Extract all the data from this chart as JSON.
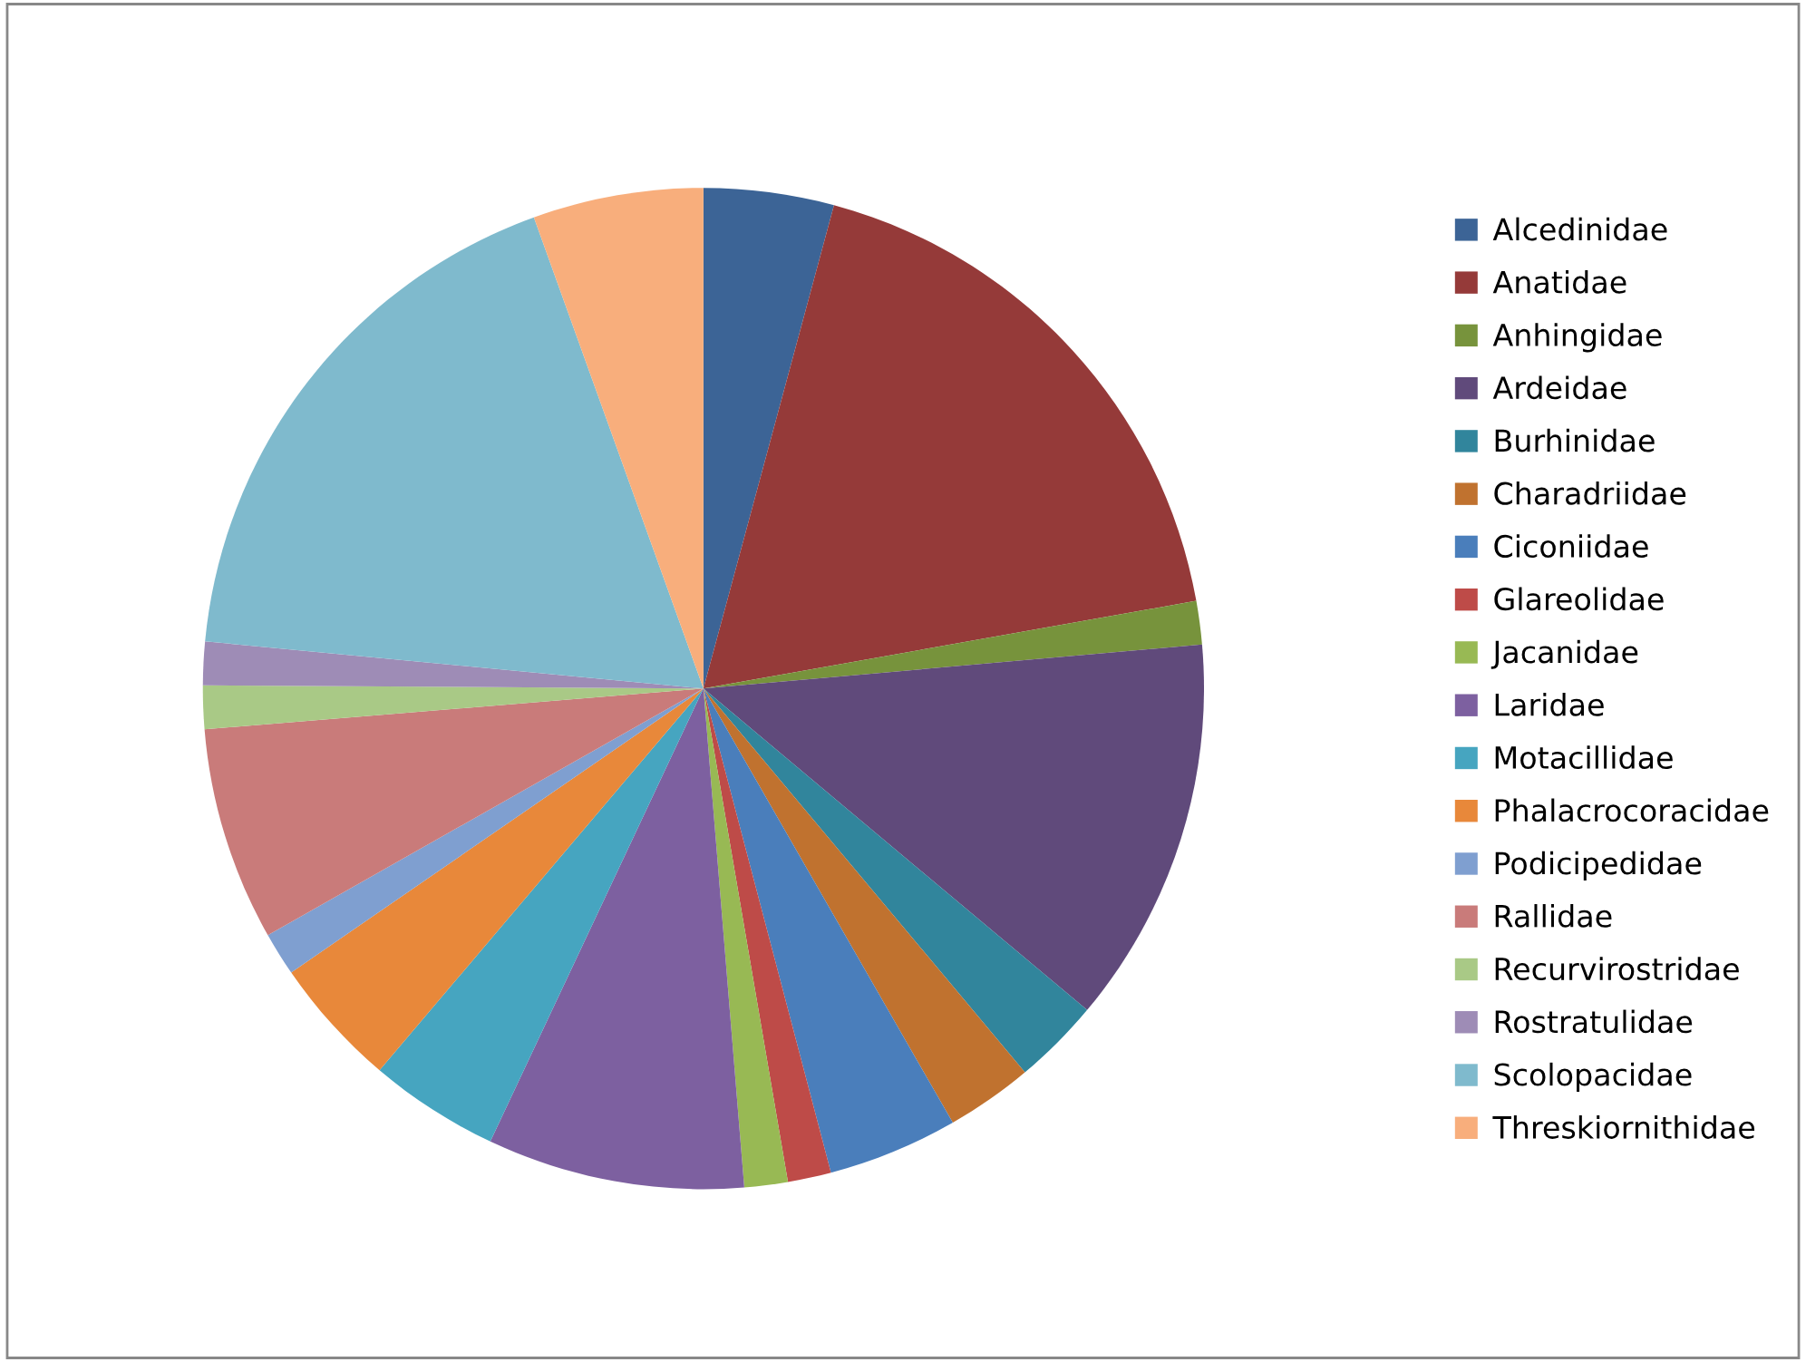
{
  "chart_data": {
    "type": "pie",
    "categories": [
      "Alcedinidae",
      "Anatidae",
      "Anhingidae",
      "Ardeidae",
      "Burhinidae",
      "Charadriidae",
      "Ciconiidae",
      "Glareolidae",
      "Jacanidae",
      "Laridae",
      "Motacillidae",
      "Phalacrocoracidae",
      "Podicipedidae",
      "Rallidae",
      "Recurvirostridae",
      "Rostratulidae",
      "Scolopacidae",
      "Threskiornithidae"
    ],
    "values": [
      4.2,
      18.0,
      1.4,
      12.5,
      2.8,
      2.8,
      4.2,
      1.4,
      1.4,
      8.3,
      4.2,
      4.2,
      1.4,
      6.9,
      1.4,
      1.4,
      18.0,
      5.5
    ],
    "colors": [
      "#3c6496",
      "#953a39",
      "#77933c",
      "#604a7b",
      "#31859c",
      "#c0722f",
      "#4a7ebb",
      "#be4b48",
      "#98b954",
      "#7d60a0",
      "#46a5c0",
      "#e8883a",
      "#7f9fd0",
      "#c97b7a",
      "#a9c986",
      "#9e8cb6",
      "#7fbacd",
      "#f8ae7c"
    ],
    "legend": "right"
  }
}
